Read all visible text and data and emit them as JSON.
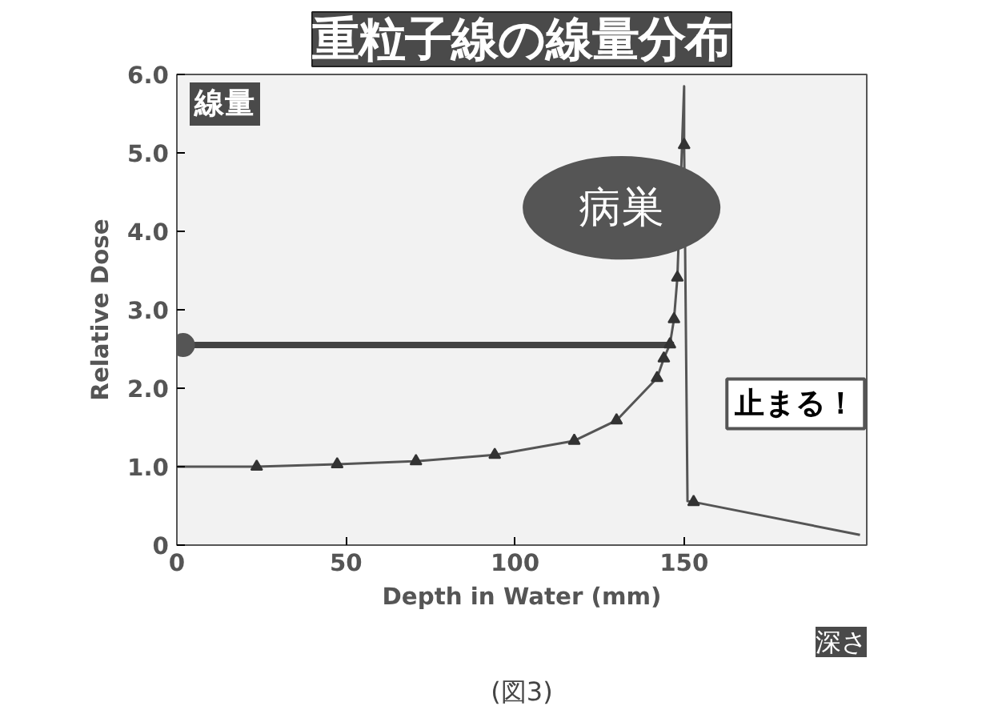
{
  "chart_data": {
    "type": "line",
    "title": "重粒子線の線量分布",
    "xlabel": "Depth in Water (mm)",
    "ylabel": "Relative Dose",
    "xlim": [
      0,
      204
    ],
    "ylim": [
      0,
      6.0
    ],
    "xticks": [
      0,
      50,
      100,
      150
    ],
    "yticks": [
      0,
      {
        "value": 1,
        "label": "1.0"
      },
      {
        "value": 2,
        "label": "2.0"
      },
      {
        "value": 3,
        "label": "3.0"
      },
      {
        "value": 4,
        "label": "4.0"
      },
      {
        "value": 5,
        "label": "5.0"
      },
      {
        "value": 6,
        "label": "6.0"
      }
    ],
    "grid": false,
    "series": [
      {
        "color": "#555555",
        "marker": "none",
        "x": [
          0,
          23.6,
          47.4,
          70.7,
          94,
          117.5,
          130,
          142,
          144,
          145.8,
          147,
          148,
          150,
          150,
          151,
          152.8,
          202
        ],
        "values": [
          1.0,
          1.0,
          1.03,
          1.07,
          1.15,
          1.33,
          1.59,
          2.13,
          2.38,
          2.56,
          2.88,
          3.41,
          5.85,
          5.1,
          0.56,
          0.55,
          0.13
        ]
      },
      {
        "type": "scatter",
        "color": "#333333",
        "marker": "triangle",
        "x": [
          23.6,
          47.4,
          70.7,
          94,
          117.5,
          130,
          142,
          144,
          145.8,
          147,
          148,
          150,
          152.8
        ],
        "values": [
          1.0,
          1.03,
          1.07,
          1.15,
          1.33,
          1.59,
          2.13,
          2.38,
          2.56,
          2.88,
          3.41,
          5.1,
          0.55
        ]
      },
      {
        "color": "#444444",
        "marker": "none",
        "x": [
          1.8,
          147
        ],
        "values": [
          2.55,
          2.55
        ]
      },
      {
        "type": "scatter",
        "color": "#555555",
        "marker": "circle",
        "x": [
          1.8
        ],
        "values": [
          2.55
        ]
      }
    ],
    "annotations": [
      "病巣",
      "止まる！",
      "線量",
      "深さ",
      "(図3)"
    ]
  }
}
